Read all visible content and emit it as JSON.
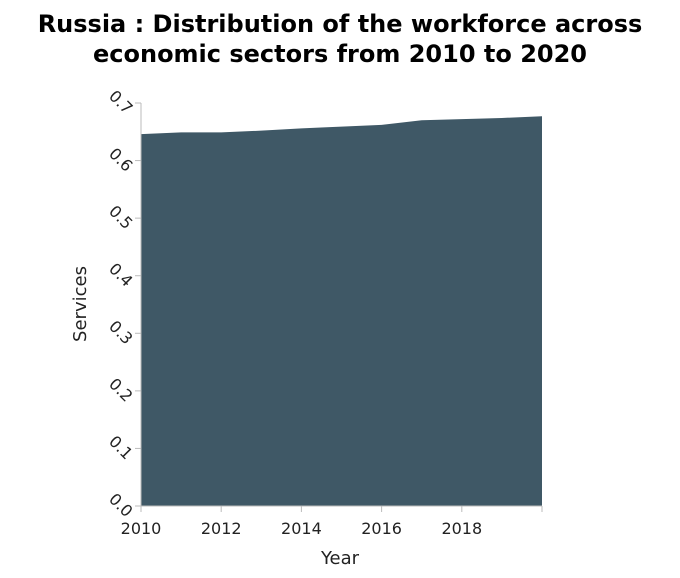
{
  "colors": {
    "area_fill": "#3f5866",
    "axis": "#bbbbbb",
    "text": "#222222"
  },
  "chart_data": {
    "type": "area",
    "title_line_1": "Russia : Distribution of the workforce across",
    "title_line_2": "economic sectors from 2010 to 2020",
    "xlabel": "Year",
    "ylabel": "Services",
    "x": [
      2010,
      2011,
      2012,
      2013,
      2014,
      2015,
      2016,
      2017,
      2018,
      2019,
      2020
    ],
    "series": [
      {
        "name": "",
        "values": [
          0.646,
          0.649,
          0.649,
          0.652,
          0.656,
          0.659,
          0.662,
          0.67,
          0.672,
          0.674,
          0.677
        ]
      }
    ],
    "xlim": [
      2010,
      2020
    ],
    "ylim": [
      0,
      0.7
    ],
    "x_ticks": [
      2010,
      2012,
      2014,
      2016,
      2018
    ],
    "x_tick_labels": [
      "2010",
      "2012",
      "2014",
      "2016",
      "2018"
    ],
    "y_ticks": [
      0,
      0.1,
      0.2,
      0.3,
      0.4,
      0.5,
      0.6,
      0.7
    ],
    "y_tick_labels": [
      "0.0",
      "0.1",
      "0.2",
      "0.3",
      "0.4",
      "0.5",
      "0.6",
      "0.7"
    ],
    "grid": false,
    "legend": "none"
  }
}
